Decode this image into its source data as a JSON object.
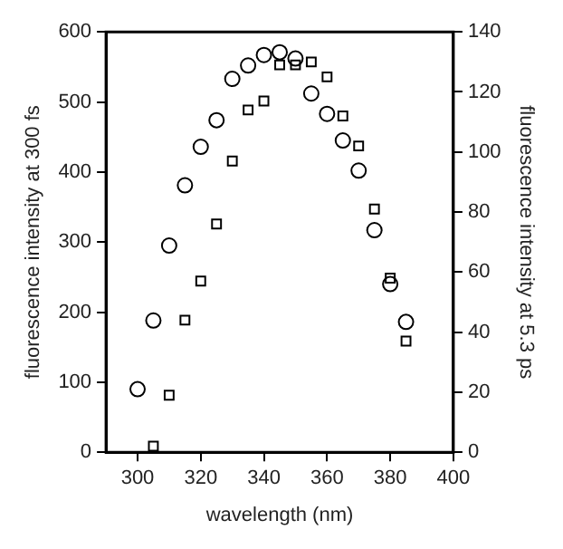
{
  "chart_data": {
    "type": "scatter",
    "xlabel": "wavelength (nm)",
    "ylabel": "fluorescence intensity at 300 fs",
    "y2label": "fluorescence intensity at 5.3 ps",
    "x": [
      300,
      305,
      310,
      315,
      320,
      325,
      330,
      335,
      340,
      345,
      350,
      355,
      360,
      365,
      370,
      375,
      380,
      385
    ],
    "series": [
      {
        "color": "#000000",
        "marker": "circle",
        "values": [
          90,
          188,
          295,
          381,
          436,
          474,
          533,
          552,
          567,
          571,
          562,
          512,
          483,
          445,
          402,
          317,
          240,
          186
        ]
      },
      {
        "color": "#000000",
        "marker": "square",
        "axis": "y2",
        "values": [
          null,
          2,
          19,
          44,
          57,
          76,
          97,
          114,
          117,
          129,
          129,
          130,
          125,
          112,
          102,
          81,
          58,
          37
        ]
      }
    ],
    "xlim": [
      290,
      400
    ],
    "xticks": [
      300,
      320,
      340,
      360,
      380,
      400
    ],
    "ylim": [
      0,
      600
    ],
    "yticks": [
      0,
      100,
      200,
      300,
      400,
      500,
      600
    ],
    "y2lim": [
      0,
      140
    ],
    "y2ticks": [
      0,
      20,
      40,
      60,
      80,
      100,
      120,
      140
    ],
    "grid": false,
    "legend": false
  }
}
